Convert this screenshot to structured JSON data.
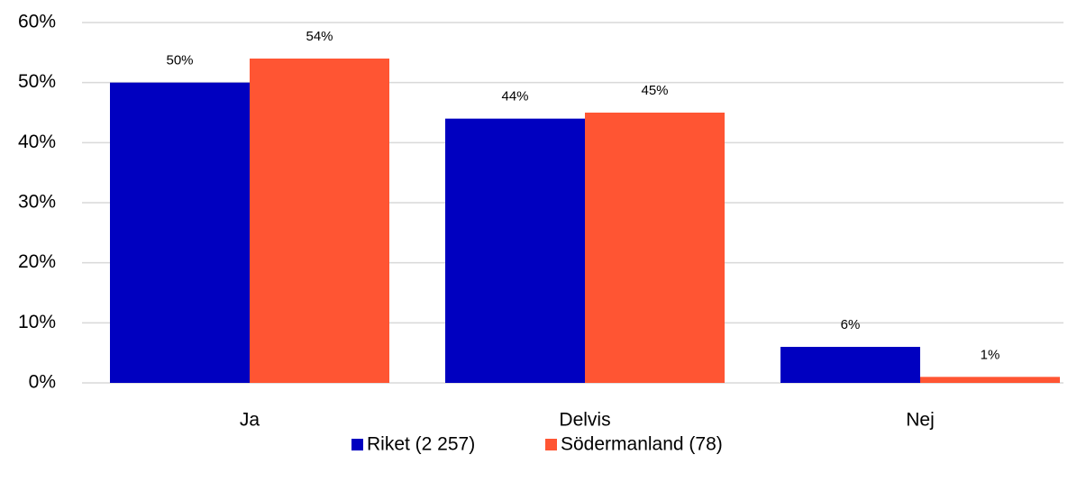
{
  "chart_data": {
    "type": "bar",
    "categories": [
      "Ja",
      "Delvis",
      "Nej"
    ],
    "series": [
      {
        "name": "Riket (2 257)",
        "color": "#0000c0",
        "values": [
          50,
          44,
          6
        ],
        "value_labels": [
          "50%",
          "44%",
          "6%"
        ]
      },
      {
        "name": "Södermanland (78)",
        "color": "#ff5533",
        "values": [
          54,
          45,
          1
        ],
        "value_labels": [
          "54%",
          "45%",
          "1%"
        ]
      }
    ],
    "ylim": [
      0,
      60
    ],
    "yticks": [
      {
        "value": 0,
        "label": "0%"
      },
      {
        "value": 10,
        "label": "10%"
      },
      {
        "value": 20,
        "label": "20%"
      },
      {
        "value": 30,
        "label": "30%"
      },
      {
        "value": 40,
        "label": "40%"
      },
      {
        "value": 50,
        "label": "50%"
      },
      {
        "value": 60,
        "label": "60%"
      }
    ],
    "grid": true,
    "legend": "bottom"
  }
}
